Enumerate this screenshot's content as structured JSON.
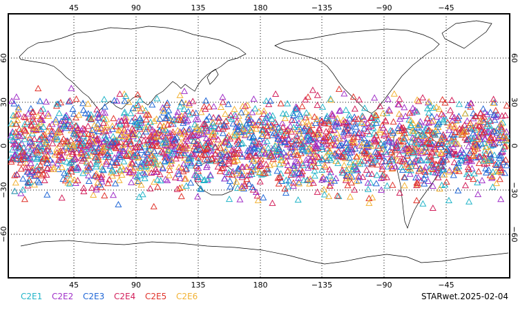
{
  "map": {
    "projection": "equirectangular",
    "lon_center": 180,
    "lat_range": [
      -90,
      90
    ],
    "top_lon_labels": [
      "45",
      "90",
      "135",
      "180",
      "−135",
      "−90",
      "−45"
    ],
    "bottom_lon_labels": [
      "45",
      "90",
      "135",
      "180",
      "−135",
      "−90",
      "−45"
    ],
    "left_lat_labels": [
      "60",
      "30",
      "0",
      "−30",
      "−60"
    ],
    "right_lat_labels": [
      "60",
      "30",
      "0",
      "−30",
      "−60"
    ],
    "grid": "dotted",
    "marker": "triangle",
    "marker_lat_band": [
      -45,
      45
    ]
  },
  "legend": {
    "items": [
      {
        "label": "C2E1",
        "color": "#21b4c8"
      },
      {
        "label": "C2E2",
        "color": "#a030c8"
      },
      {
        "label": "C2E3",
        "color": "#1f66d6"
      },
      {
        "label": "C2E4",
        "color": "#d21e5a"
      },
      {
        "label": "C2E5",
        "color": "#e0322a"
      },
      {
        "label": "C2E6",
        "color": "#f2b233"
      }
    ]
  },
  "footer": {
    "stamp": "STARwet.2025-02-04"
  }
}
